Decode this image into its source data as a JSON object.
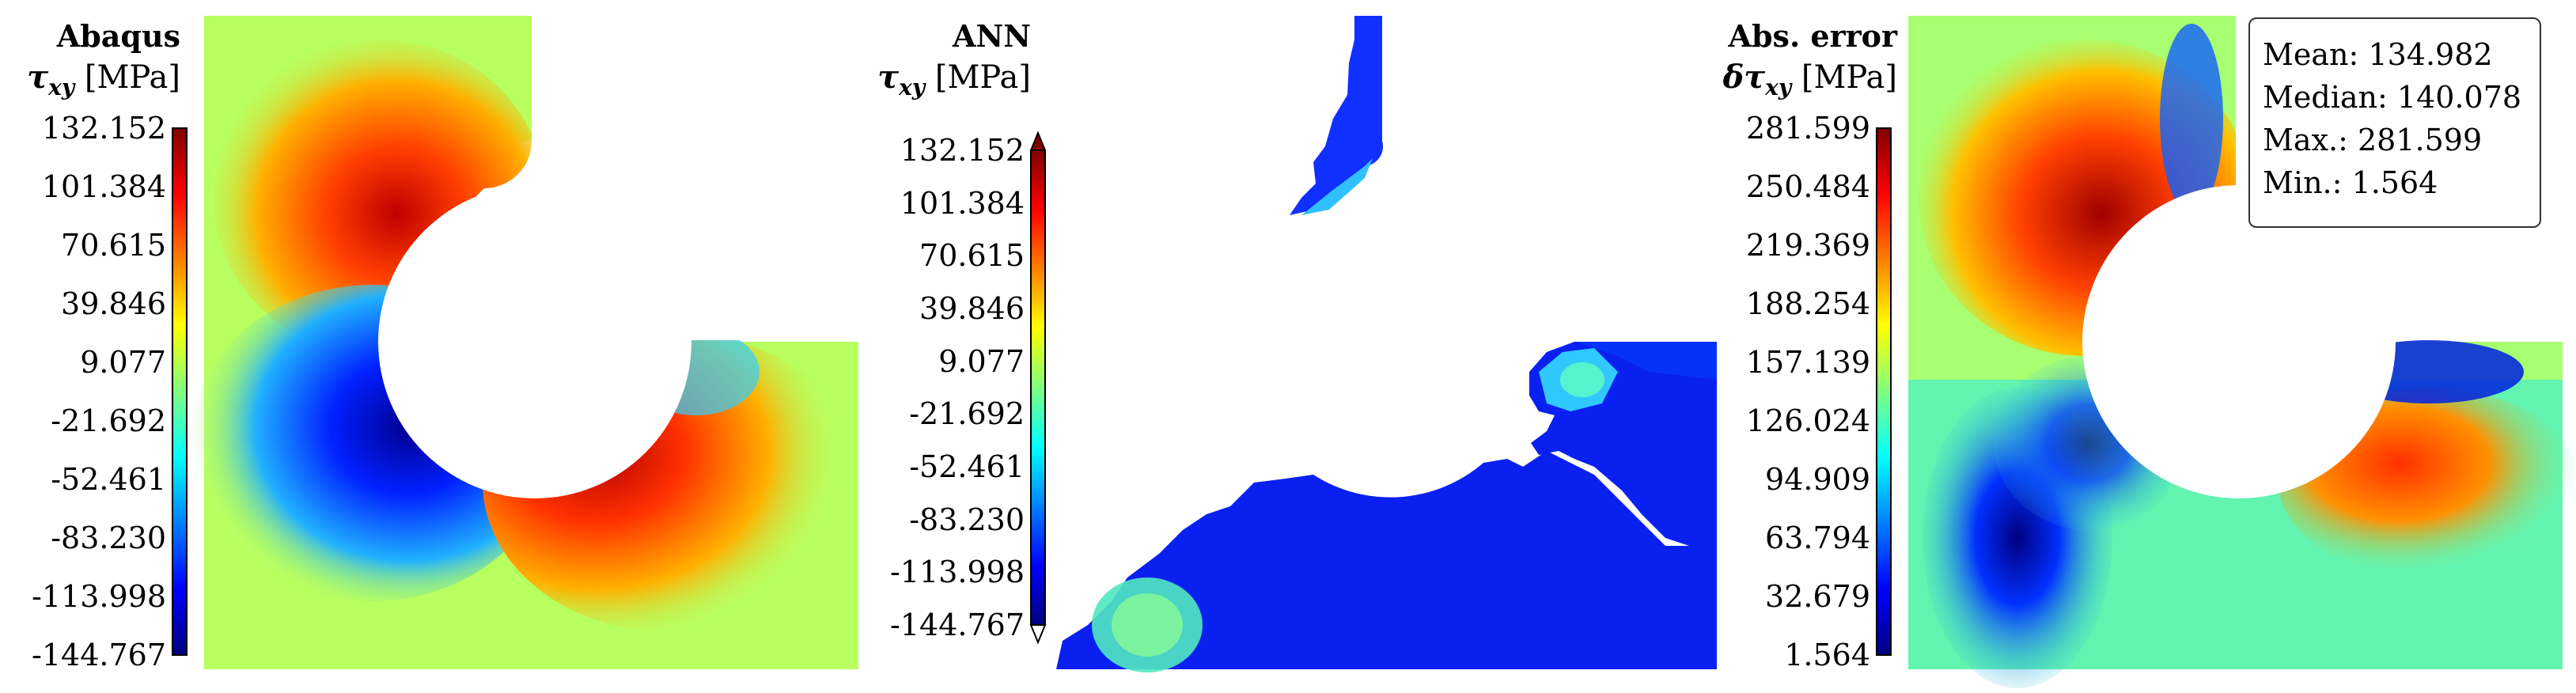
{
  "chart_data": [
    {
      "type": "heatmap",
      "title": "Abaqus",
      "quantity": "τxy [MPa]",
      "quantity_symbol": "τ",
      "quantity_sub": "xy",
      "quantity_unit": "[MPa]",
      "colorbar": {
        "min": -144.767,
        "max": 132.152,
        "ticks": [
          "132.152",
          "101.384",
          "70.615",
          "39.846",
          "9.077",
          "-21.692",
          "-52.461",
          "-83.230",
          "-113.998",
          "-144.767"
        ],
        "colormap": "jet",
        "extend": "none"
      }
    },
    {
      "type": "heatmap",
      "title": "ANN",
      "quantity": "τxy [MPa]",
      "quantity_symbol": "τ",
      "quantity_sub": "xy",
      "quantity_unit": "[MPa]",
      "colorbar": {
        "min": -144.767,
        "max": 132.152,
        "ticks": [
          "132.152",
          "101.384",
          "70.615",
          "39.846",
          "9.077",
          "-21.692",
          "-52.461",
          "-83.230",
          "-113.998",
          "-144.767"
        ],
        "colormap": "jet",
        "extend": "both"
      }
    },
    {
      "type": "heatmap",
      "title": "Abs. error",
      "quantity": "δτxy [MPa]",
      "quantity_symbol": "δτ",
      "quantity_sub": "xy",
      "quantity_unit": "[MPa]",
      "colorbar": {
        "min": 1.564,
        "max": 281.599,
        "ticks": [
          "281.599",
          "250.484",
          "219.369",
          "188.254",
          "157.139",
          "126.024",
          "94.909",
          "63.794",
          "32.679",
          "1.564"
        ],
        "colormap": "jet",
        "extend": "none"
      },
      "stats": [
        {
          "label": "Mean:",
          "value": "134.982"
        },
        {
          "label": "Median:",
          "value": "140.078"
        },
        {
          "label": "Max.:",
          "value": "281.599"
        },
        {
          "label": "Min.:",
          "value": "1.564"
        }
      ]
    }
  ]
}
